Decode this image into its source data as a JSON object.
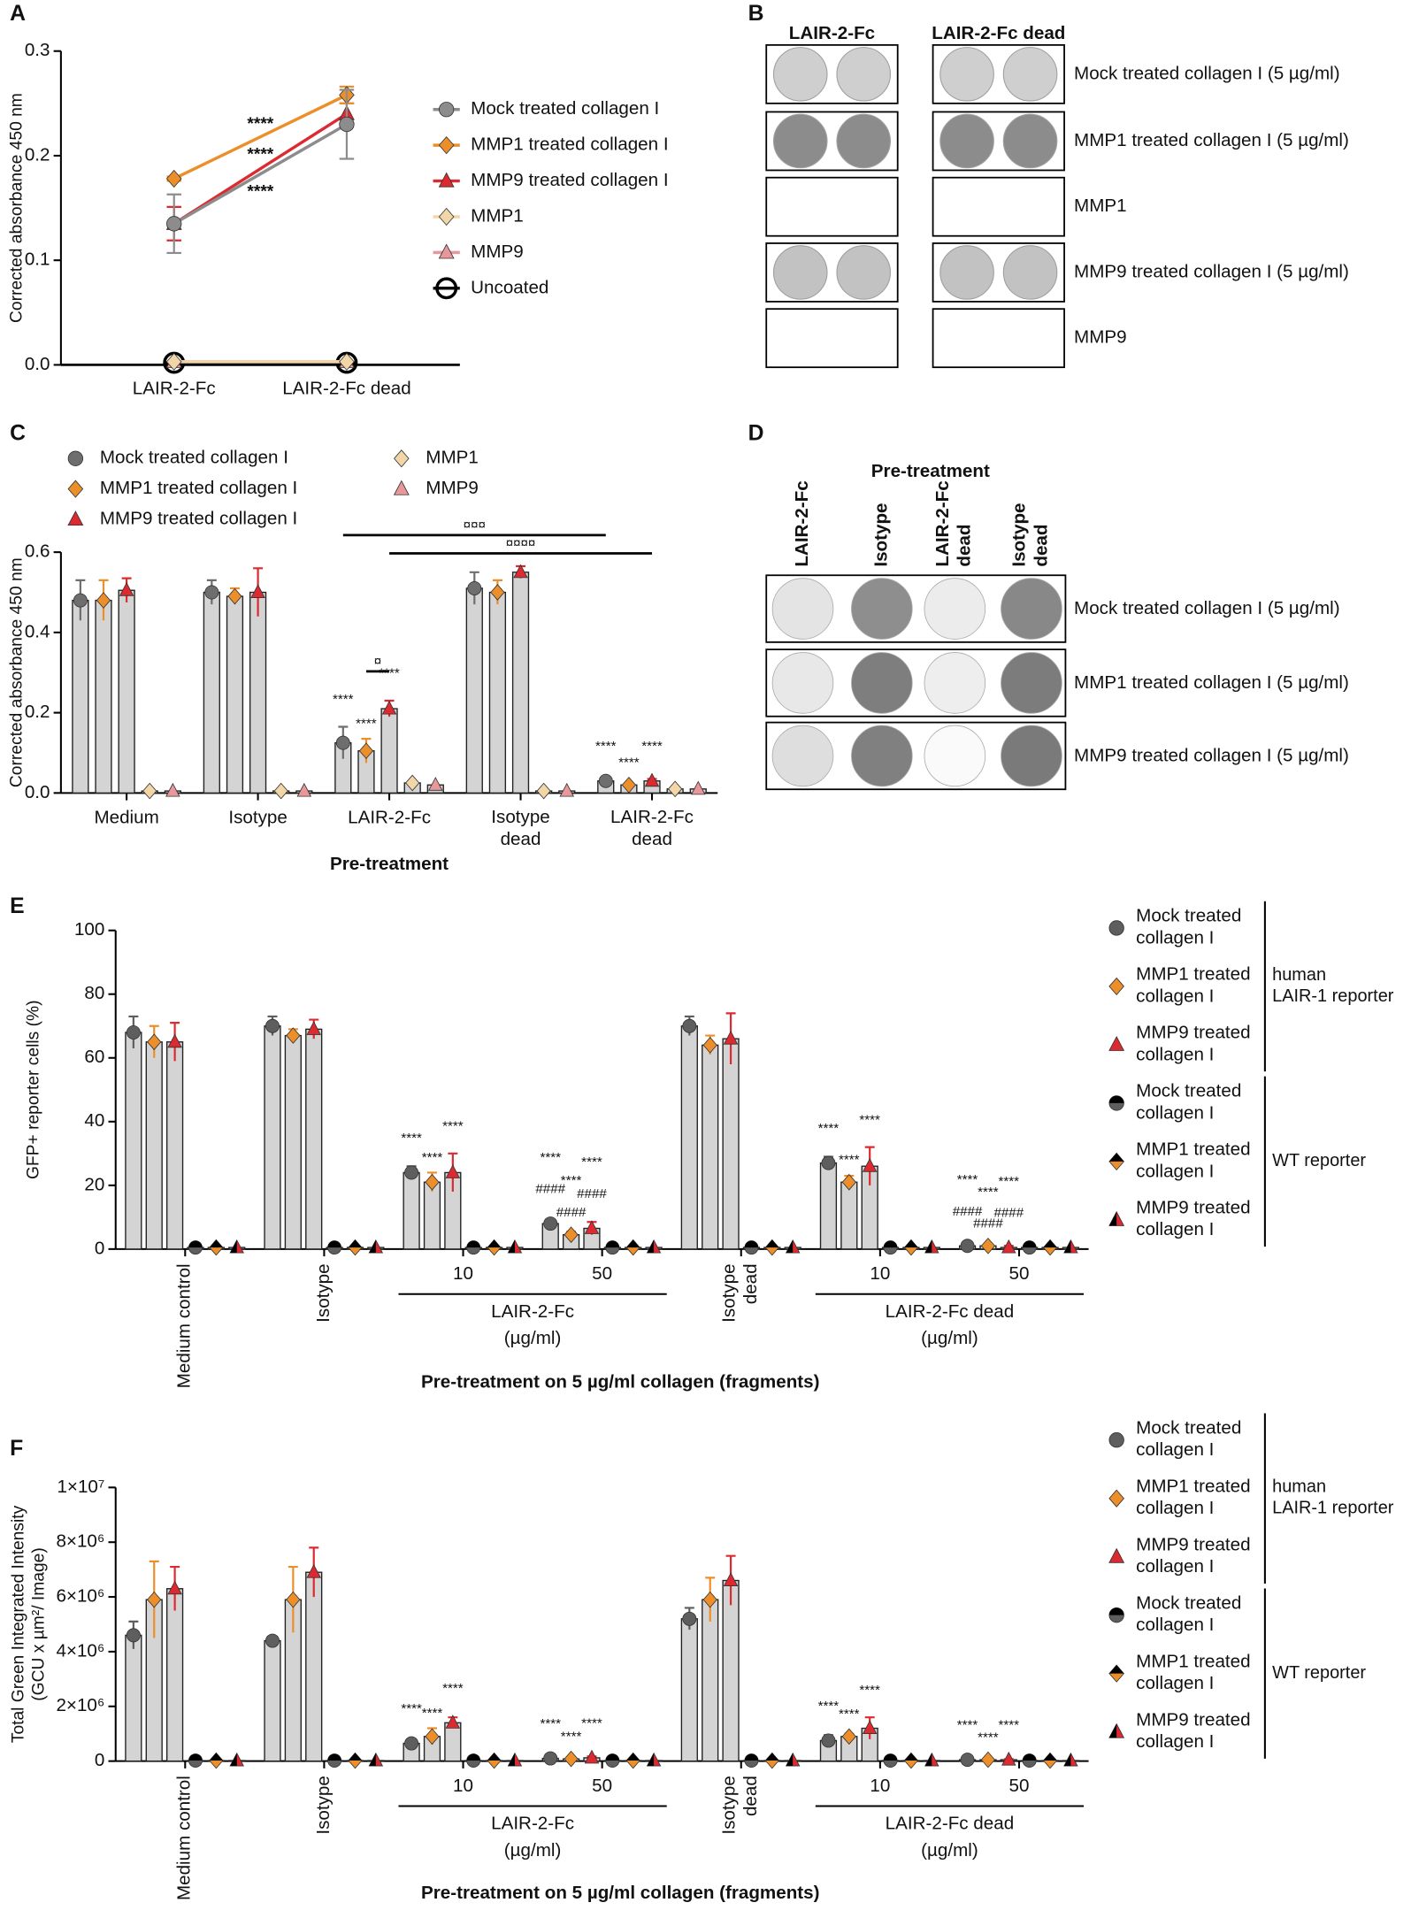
{
  "panel_labels": [
    "A",
    "B",
    "C",
    "D",
    "E",
    "F"
  ],
  "chart_data": [
    {
      "type": "line",
      "ylabel": "Corrected absorbance 450 nm",
      "categories": [
        "LAIR-2-Fc",
        "LAIR-2-Fc dead"
      ],
      "ylim": [
        0,
        0.3
      ],
      "yticks": [
        {
          "value": 0,
          "label": "0.0"
        },
        0.1,
        0.2,
        0.3
      ],
      "series": [
        {
          "name": "Mock treated collagen I",
          "color": "#8c8c8c",
          "marker": "circle",
          "values": [
            0.135,
            0.23
          ],
          "errors": [
            0.028,
            0.033
          ],
          "sig": "****"
        },
        {
          "name": "MMP1 treated collagen I",
          "color": "#ec8f2a",
          "marker": "diamond",
          "values": [
            0.178,
            0.258
          ],
          "errors": [
            0.002,
            0.008
          ],
          "sig": "****"
        },
        {
          "name": "MMP9 treated collagen I",
          "color": "#dc2a30",
          "marker": "triangle",
          "values": [
            0.135,
            0.24
          ],
          "errors": [
            0.016,
            0.01
          ],
          "sig": "****"
        },
        {
          "name": "MMP1",
          "color": "#f3d6a8",
          "marker": "diamond",
          "values": [
            0.003,
            0.003
          ]
        },
        {
          "name": "MMP9",
          "color": "#e8979b",
          "marker": "triangle",
          "values": [
            0.003,
            0.003
          ]
        },
        {
          "name": "Uncoated",
          "color": "#000000",
          "marker": "ring",
          "values": [
            0.002,
            0.002
          ]
        }
      ]
    },
    {
      "type": "bar",
      "ylabel": "Corrected absorbance 450 nm",
      "xlabel": "Pre-treatment",
      "categories": [
        "Medium",
        "Isotype",
        "LAIR-2-Fc",
        "Isotype\ndead",
        "LAIR-2-Fc\ndead"
      ],
      "ylim": [
        0,
        0.6
      ],
      "yticks": [
        {
          "value": 0,
          "label": "0.0"
        },
        0.2,
        0.4,
        0.6
      ],
      "series": [
        {
          "name": "Mock treated collagen I",
          "color": "#6e6e6e",
          "marker": "circle",
          "values": [
            0.48,
            0.5,
            0.125,
            0.51,
            0.03
          ],
          "errors": [
            0.05,
            0.03,
            0.04,
            0.04,
            0.005
          ],
          "sig": [
            null,
            null,
            "****",
            null,
            "****"
          ]
        },
        {
          "name": "MMP1 treated collagen I",
          "color": "#ec8f2a",
          "marker": "diamond",
          "values": [
            0.48,
            0.49,
            0.105,
            0.5,
            0.02
          ],
          "errors": [
            0.05,
            0.02,
            0.03,
            0.03,
            0.004
          ],
          "sig": [
            null,
            null,
            "****",
            null,
            "****"
          ]
        },
        {
          "name": "MMP9 treated collagen I",
          "color": "#dc2a30",
          "marker": "triangle",
          "values": [
            0.505,
            0.5,
            0.21,
            0.55,
            0.03
          ],
          "errors": [
            0.03,
            0.06,
            0.02,
            0.015,
            0.005
          ],
          "sig": [
            null,
            null,
            "****",
            null,
            "****"
          ]
        },
        {
          "name": "MMP1",
          "color": "#f3d6a8",
          "marker": "diamond",
          "values": [
            0.005,
            0.005,
            0.025,
            0.005,
            0.01
          ]
        },
        {
          "name": "MMP9",
          "color": "#e8979b",
          "marker": "triangle",
          "values": [
            0.005,
            0.005,
            0.02,
            0.005,
            0.01
          ]
        }
      ],
      "brackets": [
        {
          "label": "¤¤¤",
          "from": [
            2,
            0
          ],
          "to": [
            4,
            0
          ]
        },
        {
          "label": "¤¤¤¤",
          "from": [
            2,
            2
          ],
          "to": [
            4,
            2
          ]
        },
        {
          "label": "¤",
          "from": [
            2,
            1
          ],
          "to": [
            2,
            2
          ]
        }
      ]
    },
    {
      "type": "bar",
      "ylabel": "GFP+ reporter cells (%)",
      "xlabel": "Pre-treatment on 5 µg/ml collagen (fragments)",
      "categories": [
        "Medium control",
        "Isotype",
        "10",
        "50",
        "Isotype\ndead",
        "10",
        "50"
      ],
      "groups": [
        {
          "label": "LAIR-2-Fc",
          "unit": "(µg/ml)",
          "from": 2,
          "to": 3
        },
        {
          "label": "LAIR-2-Fc dead",
          "unit": "(µg/ml)",
          "from": 5,
          "to": 6
        }
      ],
      "ylim": [
        0,
        100
      ],
      "yticks": [
        0,
        20,
        40,
        60,
        80,
        100
      ],
      "legend_groups": [
        {
          "label": "human\nLAIR-1 reporter",
          "from": 0,
          "to": 2
        },
        {
          "label": "WT reporter",
          "from": 3,
          "to": 5
        }
      ],
      "series": [
        {
          "name": "Mock treated\ncollagen I",
          "color": "#5e5e5e",
          "marker": "circle",
          "values": [
            68,
            70,
            24,
            8,
            70,
            27,
            1
          ],
          "errors": [
            5,
            3,
            2,
            1,
            3,
            2,
            0.5
          ],
          "sig": [
            null,
            null,
            "****",
            "****",
            null,
            "****",
            "****"
          ],
          "sig2": [
            null,
            null,
            null,
            "####",
            null,
            null,
            "####"
          ]
        },
        {
          "name": "MMP1 treated\ncollagen I",
          "color": "#ec8f2a",
          "marker": "diamond",
          "values": [
            65,
            67,
            21,
            4.5,
            64,
            21,
            1
          ],
          "errors": [
            5,
            2,
            3,
            1,
            3,
            2,
            0.5
          ],
          "sig": [
            null,
            null,
            "****",
            "****",
            null,
            "****",
            "****"
          ],
          "sig2": [
            null,
            null,
            null,
            "####",
            null,
            null,
            "####"
          ]
        },
        {
          "name": "MMP9 treated\ncollagen I",
          "color": "#dc2a30",
          "marker": "triangle",
          "values": [
            65,
            69,
            24,
            6.5,
            66,
            26,
            0.5
          ],
          "errors": [
            6,
            3,
            6,
            2,
            8,
            6,
            0.5
          ],
          "sig": [
            null,
            null,
            "****",
            "****",
            null,
            "****",
            "****"
          ],
          "sig2": [
            null,
            null,
            null,
            "####",
            null,
            null,
            "####"
          ]
        },
        {
          "name": "Mock treated\ncollagen I",
          "color": "#5e5e5e",
          "marker": "circle-half",
          "values": [
            0.5,
            0.5,
            0.5,
            0.5,
            0.5,
            0.5,
            0.5
          ]
        },
        {
          "name": "MMP1 treated\ncollagen I",
          "color": "#ec8f2a",
          "marker": "diamond-half",
          "values": [
            0.5,
            0.5,
            0.5,
            0.5,
            0.5,
            0.5,
            0.5
          ]
        },
        {
          "name": "MMP9 treated\ncollagen I",
          "color": "#dc2a30",
          "marker": "triangle-half",
          "values": [
            0.5,
            0.5,
            0.5,
            0.5,
            0.5,
            0.5,
            0.5
          ]
        }
      ]
    },
    {
      "type": "bar",
      "ylabel": "Total Green Integrated Intensity\n(GCU x µm²/ Image)",
      "xlabel": "Pre-treatment on 5 µg/ml collagen (fragments)",
      "categories": [
        "Medium control",
        "Isotype",
        "10",
        "50",
        "Isotype\ndead",
        "10",
        "50"
      ],
      "groups": [
        {
          "label": "LAIR-2-Fc",
          "unit": "(µg/ml)",
          "from": 2,
          "to": 3
        },
        {
          "label": "LAIR-2-Fc dead",
          "unit": "(µg/ml)",
          "from": 5,
          "to": 6
        }
      ],
      "ylim": [
        0,
        10000000
      ],
      "yticks": [
        0,
        {
          "value": 2000000,
          "label": "2×10⁶"
        },
        {
          "value": 4000000,
          "label": "4×10⁶"
        },
        {
          "value": 6000000,
          "label": "6×10⁶"
        },
        {
          "value": 8000000,
          "label": "8×10⁶"
        },
        {
          "value": 10000000,
          "label": "1×10⁷"
        }
      ],
      "legend_groups": [
        {
          "label": "human\nLAIR-1 reporter",
          "from": 0,
          "to": 2
        },
        {
          "label": "WT reporter",
          "from": 3,
          "to": 5
        }
      ],
      "series": [
        {
          "name": "Mock treated\ncollagen I",
          "color": "#5e5e5e",
          "marker": "circle",
          "values": [
            4600000,
            4400000,
            650000,
            100000,
            5200000,
            750000,
            50000
          ],
          "errors": [
            500000,
            100000,
            100000,
            30000,
            400000,
            200000,
            20000
          ],
          "sig": [
            null,
            null,
            "****",
            "****",
            null,
            "****",
            "****"
          ]
        },
        {
          "name": "MMP1 treated\ncollagen I",
          "color": "#ec8f2a",
          "marker": "diamond",
          "values": [
            5900000,
            5900000,
            900000,
            80000,
            5900000,
            900000,
            50000
          ],
          "errors": [
            1400000,
            1200000,
            300000,
            30000,
            800000,
            100000,
            20000
          ],
          "sig": [
            null,
            null,
            "****",
            "****",
            null,
            "****",
            "****"
          ]
        },
        {
          "name": "MMP9 treated\ncollagen I",
          "color": "#dc2a30",
          "marker": "triangle",
          "values": [
            6300000,
            6900000,
            1400000,
            120000,
            6600000,
            1200000,
            50000
          ],
          "errors": [
            800000,
            900000,
            200000,
            50000,
            900000,
            400000,
            20000
          ],
          "sig": [
            null,
            null,
            "****",
            "****",
            null,
            "****",
            "****"
          ]
        },
        {
          "name": "Mock treated\ncollagen I",
          "color": "#5e5e5e",
          "marker": "circle-half",
          "values": [
            20000,
            20000,
            20000,
            20000,
            20000,
            20000,
            20000
          ]
        },
        {
          "name": "MMP1 treated\ncollagen I",
          "color": "#ec8f2a",
          "marker": "diamond-half",
          "values": [
            20000,
            20000,
            20000,
            20000,
            20000,
            20000,
            20000
          ]
        },
        {
          "name": "MMP9 treated\ncollagen I",
          "color": "#dc2a30",
          "marker": "triangle-half",
          "values": [
            20000,
            20000,
            20000,
            20000,
            20000,
            20000,
            20000
          ]
        }
      ]
    }
  ],
  "blot_b": {
    "columns": [
      "LAIR-2-Fc",
      "LAIR-2-Fc dead"
    ],
    "rows": [
      {
        "label": "Mock treated collagen I (5 µg/ml)",
        "color": "#111111",
        "spot": "#cfcfcf"
      },
      {
        "label": "MMP1 treated collagen I (5 µg/ml)",
        "color": "#ec8f2a",
        "spot": "#8c8c8c"
      },
      {
        "label": "MMP1",
        "color": "#ec8f2a",
        "spot": null
      },
      {
        "label": "MMP9 treated collagen I (5 µg/ml)",
        "color": "#dc2a30",
        "spot": "#c2c2c2"
      },
      {
        "label": "MMP9",
        "color": "#dc2a30",
        "spot": null
      }
    ]
  },
  "blot_d": {
    "title": "Pre-treatment",
    "columns": [
      "LAIR-2-Fc",
      "Isotype",
      "LAIR-2-Fc\ndead",
      "Isotype\ndead"
    ],
    "rows": [
      {
        "label": "Mock treated collagen I (5 µg/ml)",
        "color": "#111111",
        "spots": [
          "#e4e4e4",
          "#8e8e8e",
          "#ececec",
          "#888888"
        ]
      },
      {
        "label": "MMP1 treated collagen I (5 µg/ml)",
        "color": "#ec8f2a",
        "spots": [
          "#e8e8e8",
          "#7e7e7e",
          "#eeeeee",
          "#7c7c7c"
        ]
      },
      {
        "label": "MMP9 treated collagen I (5 µg/ml)",
        "color": "#dc2a30",
        "spots": [
          "#dedede",
          "#808080",
          "#fafafa",
          "#7a7a7a"
        ]
      }
    ]
  }
}
